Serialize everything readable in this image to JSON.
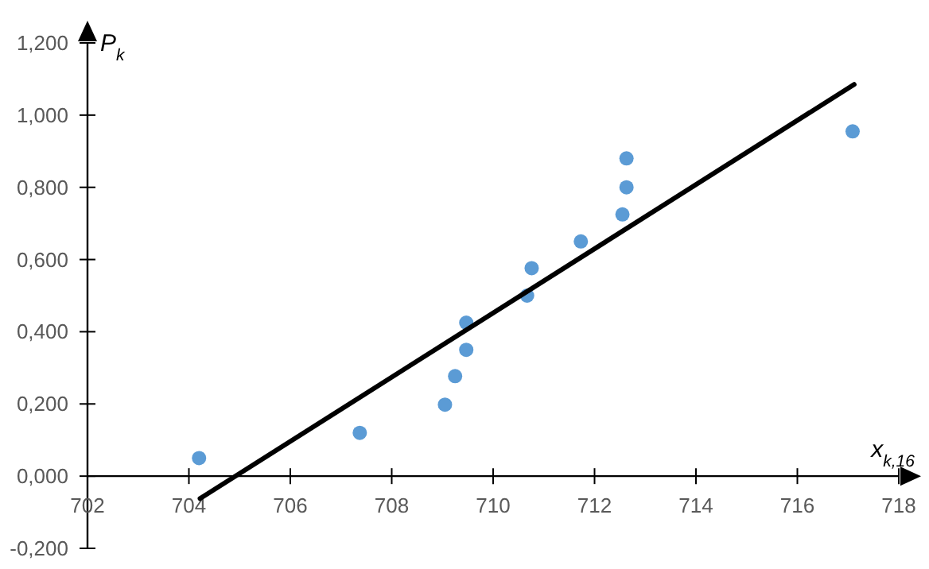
{
  "chart_data": {
    "type": "scatter",
    "xlabel": "x$_{k,16}$",
    "ylabel": "P$_{k}$",
    "xlim": [
      702,
      718
    ],
    "xticks": [
      702,
      704,
      706,
      708,
      710,
      712,
      714,
      716,
      718
    ],
    "ylim": [
      -0.2,
      1.2
    ],
    "yticks": [
      {
        "value": -0.2,
        "label": "-0,200"
      },
      {
        "value": 0,
        "label": "0,000"
      },
      {
        "value": 0.2,
        "label": "0,200"
      },
      {
        "value": 0.4,
        "label": "0,400"
      },
      {
        "value": 0.6,
        "label": "0,600"
      },
      {
        "value": 0.8,
        "label": "0,800"
      },
      {
        "value": 1.0,
        "label": "1,000"
      },
      {
        "value": 1.2,
        "label": "1,200"
      }
    ],
    "grid": false,
    "series": [
      {
        "color": "#5b9bd5",
        "marker": "circle",
        "x": [
          704.2,
          707.37,
          709.05,
          709.25,
          709.47,
          709.47,
          710.67,
          710.76,
          711.73,
          712.55,
          712.63,
          712.63,
          717.09
        ],
        "values": [
          0.05,
          0.12,
          0.198,
          0.277,
          0.35,
          0.425,
          0.5,
          0.576,
          0.65,
          0.725,
          0.8,
          0.88,
          0.955
        ]
      },
      {
        "type": "line",
        "color": "#000000",
        "x": [
          704.22,
          717.12
        ],
        "values": [
          -0.062,
          1.085
        ],
        "marker": "none",
        "line_style": "solid"
      }
    ]
  }
}
